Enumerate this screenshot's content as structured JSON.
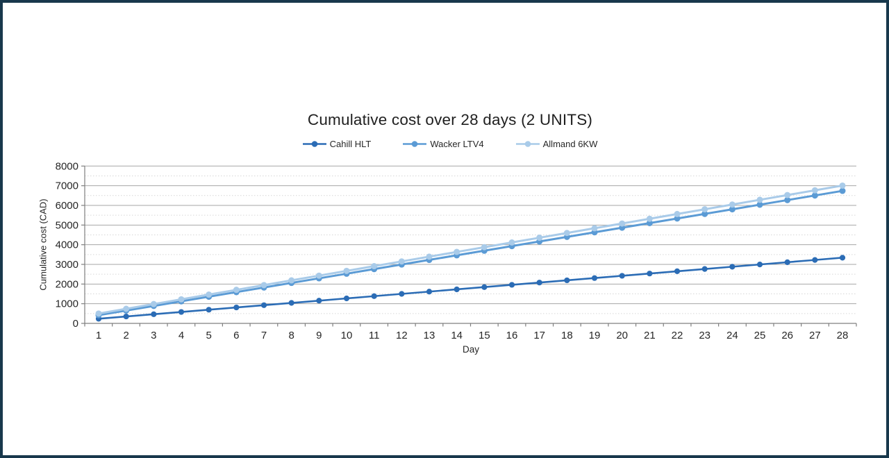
{
  "frame": {
    "background": "#ffffff",
    "border_color": "#18384c"
  },
  "chart_data": {
    "type": "line",
    "title": "Cumulative cost over 28 days (2 UNITS)",
    "xlabel": "Day",
    "ylabel": "Cumulative cost (CAD)",
    "x": [
      1,
      2,
      3,
      4,
      5,
      6,
      7,
      8,
      9,
      10,
      11,
      12,
      13,
      14,
      15,
      16,
      17,
      18,
      19,
      20,
      21,
      22,
      23,
      24,
      25,
      26,
      27,
      28
    ],
    "ylim": [
      0,
      8000
    ],
    "y_tick_step": 1000,
    "y_minor_step": 500,
    "grid": true,
    "legend_position": "top",
    "colors": {
      "major_grid": "#a6a6a6",
      "minor_grid": "#d6d6d6",
      "axis": "#7f7f7f",
      "tick_text": "#262626"
    },
    "series": [
      {
        "name": "Cahill HLT",
        "color": "#2b6cb5",
        "values": [
          235,
          350,
          465,
          580,
          695,
          810,
          925,
          1040,
          1155,
          1270,
          1385,
          1500,
          1615,
          1730,
          1845,
          1960,
          2075,
          2190,
          2305,
          2420,
          2535,
          2650,
          2765,
          2880,
          2995,
          3110,
          3225,
          3340
        ]
      },
      {
        "name": "Wacker LTV4",
        "color": "#5b9bd5",
        "values": [
          420,
          654,
          888,
          1122,
          1356,
          1590,
          1824,
          2058,
          2292,
          2526,
          2760,
          2994,
          3228,
          3462,
          3696,
          3930,
          4164,
          4398,
          4632,
          4866,
          5100,
          5334,
          5568,
          5802,
          6036,
          6270,
          6504,
          6738
        ]
      },
      {
        "name": "Allmand 6KW",
        "color": "#a9cbe9",
        "values": [
          500,
          741,
          982,
          1223,
          1464,
          1705,
          1946,
          2187,
          2428,
          2669,
          2910,
          3151,
          3392,
          3633,
          3874,
          4115,
          4356,
          4597,
          4838,
          5079,
          5320,
          5561,
          5802,
          6043,
          6284,
          6525,
          6766,
          7007
        ]
      }
    ]
  }
}
